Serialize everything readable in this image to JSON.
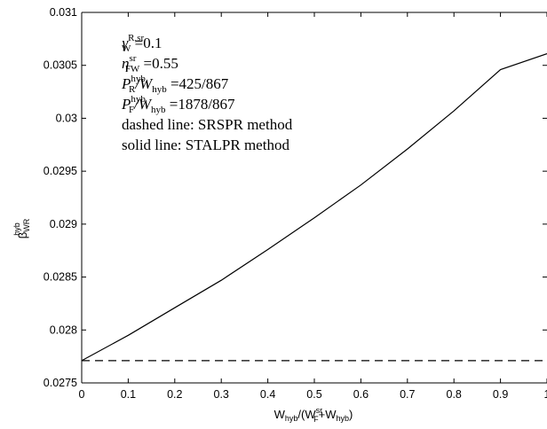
{
  "chart_data": {
    "type": "line",
    "xlabel": {
      "main": "W",
      "main_sub": "hyb",
      "mid": "/(W",
      "f_sub": "F",
      "f_sup": "sr",
      "plus": "+W",
      "plus_sub": "hyb",
      "end": ")"
    },
    "ylabel": {
      "main": "β",
      "sup": "hyb",
      "sub": "WR"
    },
    "xlim": [
      0,
      1
    ],
    "ylim": [
      0.0275,
      0.031
    ],
    "x_ticks": [
      0,
      0.1,
      0.2,
      0.3,
      0.4,
      0.5,
      0.6,
      0.7,
      0.8,
      0.9,
      1
    ],
    "x_tick_labels": [
      "0",
      "0.1",
      "0.2",
      "0.3",
      "0.4",
      "0.5",
      "0.6",
      "0.7",
      "0.8",
      "0.9",
      "1"
    ],
    "y_ticks": [
      0.0275,
      0.028,
      0.0285,
      0.029,
      0.0295,
      0.03,
      0.0305,
      0.031
    ],
    "y_tick_labels": [
      "0.0275",
      "0.028",
      "0.0285",
      "0.029",
      "0.0295",
      "0.03",
      "0.0305",
      "0.031"
    ],
    "grid": false,
    "series": [
      {
        "style": "solid",
        "color": "#000000",
        "x": [
          0,
          0.1,
          0.2,
          0.3,
          0.4,
          0.5,
          0.6,
          0.7,
          0.8,
          0.9,
          1.0
        ],
        "y": [
          0.02771,
          0.02795,
          0.02821,
          0.02847,
          0.02876,
          0.02906,
          0.02937,
          0.02971,
          0.03007,
          0.03046,
          0.03061
        ]
      },
      {
        "style": "dashed",
        "color": "#000000",
        "x": [
          0,
          1
        ],
        "y": [
          0.02771,
          0.02771
        ]
      }
    ],
    "annotations": [
      {
        "sym": "γ",
        "sup": "R,sr",
        "sub": "W",
        "rest": " =0.1"
      },
      {
        "sym": "η",
        "sup": "sr",
        "sub": "FW",
        "rest": " =0.55"
      },
      {
        "sym": "P",
        "sup": "hyb",
        "sub": "R",
        "mid": "/W",
        "mid_sub": "hyb",
        "rest": " =425/867"
      },
      {
        "sym": "P",
        "sup": "hyb",
        "sub": "F",
        "mid": "/W",
        "mid_sub": "hyb",
        "rest": " =1878/867"
      },
      {
        "text": "dashed line: SRSPR method"
      },
      {
        "text": "solid line: STALPR method"
      }
    ]
  }
}
